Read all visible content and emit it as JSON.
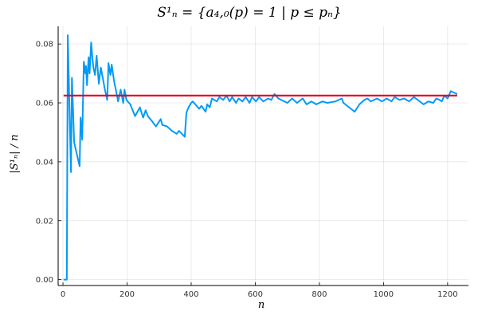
{
  "chart_data": {
    "type": "line",
    "title": "S¹ₙ = {a₄,₀(p) = 1 | p ≤ pₙ}",
    "xlabel": "n",
    "ylabel": "|S¹ₙ| / n",
    "xlim": [
      -15,
      1265
    ],
    "ylim": [
      -0.002,
      0.086
    ],
    "xticks": [
      0,
      200,
      400,
      600,
      800,
      1000,
      1200
    ],
    "yticks": [
      0.0,
      0.02,
      0.04,
      0.06,
      0.08
    ],
    "xtick_labels": [
      "0",
      "200",
      "400",
      "600",
      "800",
      "1000",
      "1200"
    ],
    "ytick_labels": [
      "0.00",
      "0.02",
      "0.04",
      "0.06",
      "0.08"
    ],
    "grid": true,
    "legend": "none",
    "series": [
      {
        "color": "#009af9",
        "x": [
          2,
          12,
          15,
          25,
          28,
          35,
          52,
          55,
          58,
          60,
          65,
          70,
          72,
          75,
          80,
          83,
          88,
          92,
          95,
          100,
          105,
          112,
          118,
          125,
          130,
          138,
          142,
          148,
          152,
          160,
          165,
          172,
          180,
          188,
          192,
          198,
          210,
          225,
          240,
          250,
          258,
          265,
          280,
          290,
          305,
          310,
          325,
          340,
          355,
          362,
          380,
          385,
          388,
          392,
          400,
          405,
          425,
          432,
          445,
          450,
          458,
          465,
          480,
          488,
          500,
          510,
          520,
          528,
          540,
          548,
          560,
          570,
          582,
          590,
          602,
          612,
          625,
          640,
          650,
          660,
          672,
          700,
          715,
          730,
          748,
          760,
          775,
          790,
          810,
          825,
          850,
          870,
          875,
          910,
          925,
          940,
          950,
          960,
          980,
          995,
          1010,
          1025,
          1035,
          1050,
          1065,
          1080,
          1095,
          1125,
          1140,
          1155,
          1165,
          1175,
          1182,
          1190,
          1200,
          1210,
          1220,
          1230
        ],
        "y": [
          0.0,
          0.0,
          0.083,
          0.0365,
          0.0685,
          0.0465,
          0.0385,
          0.055,
          0.0515,
          0.0475,
          0.074,
          0.07,
          0.0725,
          0.066,
          0.0755,
          0.07,
          0.0805,
          0.075,
          0.072,
          0.0695,
          0.076,
          0.0665,
          0.072,
          0.068,
          0.065,
          0.061,
          0.0735,
          0.0695,
          0.073,
          0.067,
          0.0645,
          0.0605,
          0.0645,
          0.06,
          0.0645,
          0.061,
          0.0595,
          0.0555,
          0.0585,
          0.055,
          0.0575,
          0.0555,
          0.0535,
          0.052,
          0.0545,
          0.0525,
          0.052,
          0.0505,
          0.0495,
          0.0505,
          0.0485,
          0.0565,
          0.0575,
          0.0585,
          0.06,
          0.0605,
          0.058,
          0.059,
          0.057,
          0.0595,
          0.0585,
          0.0615,
          0.0605,
          0.062,
          0.061,
          0.0625,
          0.0605,
          0.062,
          0.06,
          0.0615,
          0.0605,
          0.062,
          0.06,
          0.062,
          0.0605,
          0.062,
          0.0605,
          0.0615,
          0.061,
          0.063,
          0.0615,
          0.06,
          0.0615,
          0.06,
          0.0615,
          0.0595,
          0.0605,
          0.0595,
          0.0605,
          0.06,
          0.0605,
          0.0615,
          0.06,
          0.057,
          0.0595,
          0.061,
          0.0615,
          0.0605,
          0.0615,
          0.0605,
          0.0615,
          0.0605,
          0.062,
          0.061,
          0.0615,
          0.0605,
          0.062,
          0.0595,
          0.0605,
          0.06,
          0.0615,
          0.061,
          0.0605,
          0.0625,
          0.0615,
          0.064,
          0.0635,
          0.063
        ]
      },
      {
        "color": "#e0001e",
        "x": [
          2,
          1230
        ],
        "y": [
          0.0625,
          0.0625
        ]
      }
    ]
  }
}
